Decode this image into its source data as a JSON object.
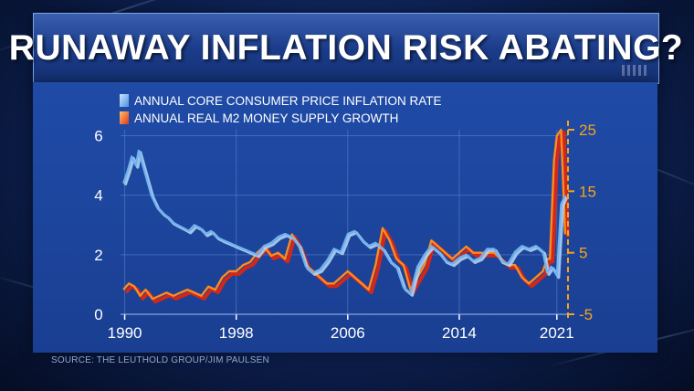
{
  "title": "RUNAWAY INFLATION RISK ABATING?",
  "source": "SOURCE: THE LEUTHOLD GROUP/JIM PAULSEN",
  "colors": {
    "cpi_line": "#6fb3f0",
    "m2_line": "#ff8a1e",
    "m2_shadow": "#d1281a",
    "cpi_shadow": "#b9d8f7",
    "left_axis": "#ffffff",
    "right_axis": "#f7a31b",
    "grid": "#5f86cf"
  },
  "chart_data": {
    "type": "line",
    "x_tick_labels": [
      "1990",
      "1998",
      "2006",
      "2014",
      "2021"
    ],
    "x_ticks": [
      1990,
      1998,
      2006,
      2014,
      2021
    ],
    "xlim": [
      1989.7,
      2021.8
    ],
    "left_axis": {
      "ticks": [
        0,
        2,
        4,
        6
      ],
      "tick_labels": [
        "0",
        "2",
        "4",
        "6"
      ],
      "ylim": [
        0,
        6.2
      ]
    },
    "right_axis": {
      "ticks": [
        -5,
        5,
        15,
        25
      ],
      "tick_labels": [
        "-5",
        "5",
        "15",
        "25"
      ],
      "ylim": [
        -5,
        25
      ]
    },
    "grid": true,
    "legend": {
      "placement": "top-left"
    },
    "series": [
      {
        "name": "ANNUAL CORE CONSUMER PRICE INFLATION RATE",
        "axis": "left",
        "x": [
          1989.9,
          1990.2,
          1990.5,
          1990.8,
          1991.0,
          1991.3,
          1991.6,
          1991.9,
          1992.3,
          1992.7,
          1993.0,
          1993.4,
          1993.8,
          1994.2,
          1994.6,
          1995.0,
          1995.4,
          1995.8,
          1996.2,
          1996.6,
          1997.0,
          1997.5,
          1998.0,
          1998.5,
          1999.0,
          1999.5,
          2000.0,
          2000.5,
          2001.0,
          2001.5,
          2002.0,
          2002.5,
          2003.0,
          2003.5,
          2004.0,
          2004.5,
          2005.0,
          2005.5,
          2006.0,
          2006.5,
          2007.0,
          2007.5,
          2008.0,
          2008.5,
          2009.0,
          2009.5,
          2010.0,
          2010.5,
          2011.0,
          2011.5,
          2012.0,
          2012.5,
          2013.0,
          2013.5,
          2014.0,
          2014.5,
          2015.0,
          2015.5,
          2016.0,
          2016.5,
          2017.0,
          2017.5,
          2018.0,
          2018.5,
          2019.0,
          2019.5,
          2020.0,
          2020.3,
          2020.6,
          2021.0,
          2021.3,
          2021.6
        ],
        "values": [
          4.4,
          4.8,
          5.3,
          5.0,
          5.5,
          5.0,
          4.5,
          4.0,
          3.6,
          3.4,
          3.3,
          3.1,
          3.0,
          2.9,
          2.8,
          3.0,
          2.9,
          2.7,
          2.8,
          2.6,
          2.5,
          2.4,
          2.3,
          2.2,
          2.1,
          2.0,
          2.3,
          2.4,
          2.6,
          2.7,
          2.6,
          2.3,
          1.6,
          1.4,
          1.5,
          1.8,
          2.2,
          2.1,
          2.7,
          2.8,
          2.5,
          2.3,
          2.4,
          2.2,
          1.8,
          1.6,
          0.9,
          0.7,
          1.6,
          2.0,
          2.3,
          2.1,
          1.8,
          1.7,
          1.9,
          2.0,
          1.8,
          1.9,
          2.2,
          2.2,
          1.8,
          1.7,
          2.1,
          2.3,
          2.2,
          2.3,
          2.1,
          1.4,
          1.6,
          1.3,
          3.7,
          4.0
        ]
      },
      {
        "name": "ANNUAL REAL M2 MONEY SUPPLY GROWTH",
        "axis": "right",
        "x": [
          1989.9,
          1990.3,
          1990.7,
          1991.1,
          1991.5,
          1992.0,
          1992.5,
          1993.0,
          1993.5,
          1994.0,
          1994.5,
          1995.0,
          1995.5,
          1996.0,
          1996.5,
          1997.0,
          1997.5,
          1998.0,
          1998.5,
          1999.0,
          1999.5,
          2000.0,
          2000.5,
          2001.0,
          2001.5,
          2002.0,
          2002.5,
          2003.0,
          2003.5,
          2004.0,
          2004.5,
          2005.0,
          2005.5,
          2006.0,
          2006.5,
          2007.0,
          2007.5,
          2008.0,
          2008.5,
          2009.0,
          2009.5,
          2010.0,
          2010.5,
          2011.0,
          2011.5,
          2012.0,
          2012.5,
          2013.0,
          2013.5,
          2014.0,
          2014.5,
          2015.0,
          2015.5,
          2016.0,
          2016.5,
          2017.0,
          2017.5,
          2018.0,
          2018.5,
          2019.0,
          2019.5,
          2020.0,
          2020.3,
          2020.5,
          2020.8,
          2021.0,
          2021.3,
          2021.6
        ],
        "values": [
          -1,
          0,
          -0.5,
          -2,
          -1,
          -2.5,
          -2,
          -1.5,
          -2,
          -1.5,
          -1,
          -1.5,
          -2,
          -0.5,
          -1,
          1,
          2,
          2,
          3,
          3.5,
          5,
          6,
          4.5,
          5,
          4,
          8,
          6,
          3,
          2,
          1,
          0,
          0,
          1,
          2,
          1,
          0,
          -1,
          3,
          9,
          7,
          4,
          3,
          -1,
          1,
          3,
          7,
          6,
          5,
          4,
          5,
          6,
          5,
          5,
          5,
          5,
          4,
          3,
          3,
          1,
          0,
          1,
          2,
          4,
          4,
          20,
          24,
          25,
          8
        ]
      }
    ]
  }
}
